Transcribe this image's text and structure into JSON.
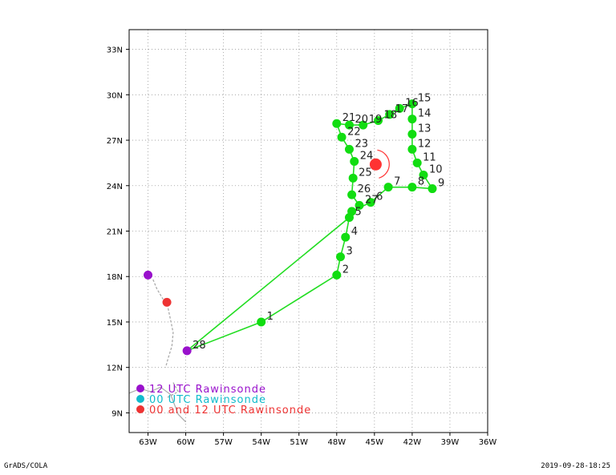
{
  "map": {
    "lon_range": [
      -64.5,
      -36
    ],
    "lat_range": [
      7.7,
      34.3
    ],
    "x_ticks": [
      {
        "value": -63,
        "label": "63W"
      },
      {
        "value": -60,
        "label": "60W"
      },
      {
        "value": -57,
        "label": "57W"
      },
      {
        "value": -54,
        "label": "54W"
      },
      {
        "value": -51,
        "label": "51W"
      },
      {
        "value": -48,
        "label": "48W"
      },
      {
        "value": -45,
        "label": "45W"
      },
      {
        "value": -42,
        "label": "42W"
      },
      {
        "value": -39,
        "label": "39W"
      },
      {
        "value": -36,
        "label": "36W"
      }
    ],
    "y_ticks": [
      {
        "value": 9,
        "label": "9N"
      },
      {
        "value": 12,
        "label": "12N"
      },
      {
        "value": 15,
        "label": "15N"
      },
      {
        "value": 18,
        "label": "18N"
      },
      {
        "value": 21,
        "label": "21N"
      },
      {
        "value": 24,
        "label": "24N"
      },
      {
        "value": 27,
        "label": "27N"
      },
      {
        "value": 30,
        "label": "30N"
      },
      {
        "value": 33,
        "label": "33N"
      }
    ],
    "grid": "dotted",
    "colors": {
      "track": "#22dd22",
      "drop": "#11dd11",
      "rawinsonde_12": "#9911cc",
      "rawinsonde_00": "#11bbcc",
      "rawinsonde_00_12": "#ee3333",
      "storm_center": "#ff3333",
      "coast": "#aaaaaa"
    }
  },
  "dropsondes": [
    {
      "label": "1",
      "lon": -54.0,
      "lat": 15.0
    },
    {
      "label": "2",
      "lon": -48.0,
      "lat": 18.1
    },
    {
      "label": "3",
      "lon": -47.7,
      "lat": 19.3
    },
    {
      "label": "4",
      "lon": -47.3,
      "lat": 20.6
    },
    {
      "label": "5",
      "lon": -47.0,
      "lat": 21.9
    },
    {
      "label": "",
      "lon": -46.8,
      "lat": 22.3
    },
    {
      "label": "6",
      "lon": -45.3,
      "lat": 22.9
    },
    {
      "label": "27",
      "lon": -46.2,
      "lat": 22.7
    },
    {
      "label": "26",
      "lon": -46.8,
      "lat": 23.4
    },
    {
      "label": "25",
      "lon": -46.7,
      "lat": 24.5
    },
    {
      "label": "24",
      "lon": -46.6,
      "lat": 25.6
    },
    {
      "label": "23",
      "lon": -47.0,
      "lat": 26.4
    },
    {
      "label": "22",
      "lon": -47.6,
      "lat": 27.2
    },
    {
      "label": "21",
      "lon": -48.0,
      "lat": 28.1
    },
    {
      "label": "20",
      "lon": -47.0,
      "lat": 28.0
    },
    {
      "label": "19",
      "lon": -45.9,
      "lat": 28.0
    },
    {
      "label": "18",
      "lon": -44.7,
      "lat": 28.3
    },
    {
      "label": "17",
      "lon": -43.8,
      "lat": 28.7
    },
    {
      "label": "16",
      "lon": -43.0,
      "lat": 29.1
    },
    {
      "label": "15",
      "lon": -42.0,
      "lat": 29.4
    },
    {
      "label": "14",
      "lon": -42.0,
      "lat": 28.4
    },
    {
      "label": "13",
      "lon": -42.0,
      "lat": 27.4
    },
    {
      "label": "12",
      "lon": -42.0,
      "lat": 26.4
    },
    {
      "label": "11",
      "lon": -41.6,
      "lat": 25.5
    },
    {
      "label": "10",
      "lon": -41.1,
      "lat": 24.7
    },
    {
      "label": "9",
      "lon": -40.4,
      "lat": 23.8
    },
    {
      "label": "8",
      "lon": -42.0,
      "lat": 23.9
    },
    {
      "label": "7",
      "lon": -43.9,
      "lat": 23.9
    },
    {
      "label": "28",
      "lon": -59.9,
      "lat": 13.1
    }
  ],
  "flight_track": [
    [
      -59.9,
      13.1
    ],
    [
      -54.0,
      15.0
    ],
    [
      -48.0,
      18.1
    ],
    [
      -47.7,
      19.3
    ],
    [
      -47.3,
      20.6
    ],
    [
      -47.0,
      21.9
    ],
    [
      -46.8,
      22.3
    ],
    [
      -45.3,
      22.9
    ],
    [
      -43.9,
      23.9
    ],
    [
      -42.0,
      23.9
    ],
    [
      -40.4,
      23.8
    ],
    [
      -41.1,
      24.7
    ],
    [
      -41.6,
      25.5
    ],
    [
      -42.0,
      26.4
    ],
    [
      -42.0,
      27.4
    ],
    [
      -42.0,
      28.4
    ],
    [
      -42.0,
      29.4
    ],
    [
      -43.0,
      29.1
    ],
    [
      -43.8,
      28.7
    ],
    [
      -44.7,
      28.3
    ],
    [
      -45.9,
      28.0
    ],
    [
      -47.0,
      28.0
    ],
    [
      -48.0,
      28.1
    ],
    [
      -47.6,
      27.2
    ],
    [
      -47.0,
      26.4
    ],
    [
      -46.6,
      25.6
    ],
    [
      -46.7,
      24.5
    ],
    [
      -46.8,
      23.4
    ],
    [
      -46.2,
      22.7
    ],
    [
      -47.0,
      21.9
    ],
    [
      -59.9,
      13.1
    ]
  ],
  "storm_center": {
    "lon": -44.9,
    "lat": 25.4
  },
  "rawinsondes": [
    {
      "type": "12",
      "lon": -63.0,
      "lat": 18.1
    },
    {
      "type": "00_12",
      "lon": -61.5,
      "lat": 16.3
    },
    {
      "type": "12",
      "lon": -59.9,
      "lat": 13.1
    }
  ],
  "legend": [
    {
      "label": "12 UTC Rawinsonde",
      "color": "#9911cc"
    },
    {
      "label": "00 UTC Rawinsonde",
      "color": "#11bbcc"
    },
    {
      "label": "00 and 12 UTC Rawinsonde",
      "color": "#ee3333"
    }
  ],
  "footer": {
    "left": "GrADS/COLA",
    "right": "2019-09-28-18:25"
  }
}
